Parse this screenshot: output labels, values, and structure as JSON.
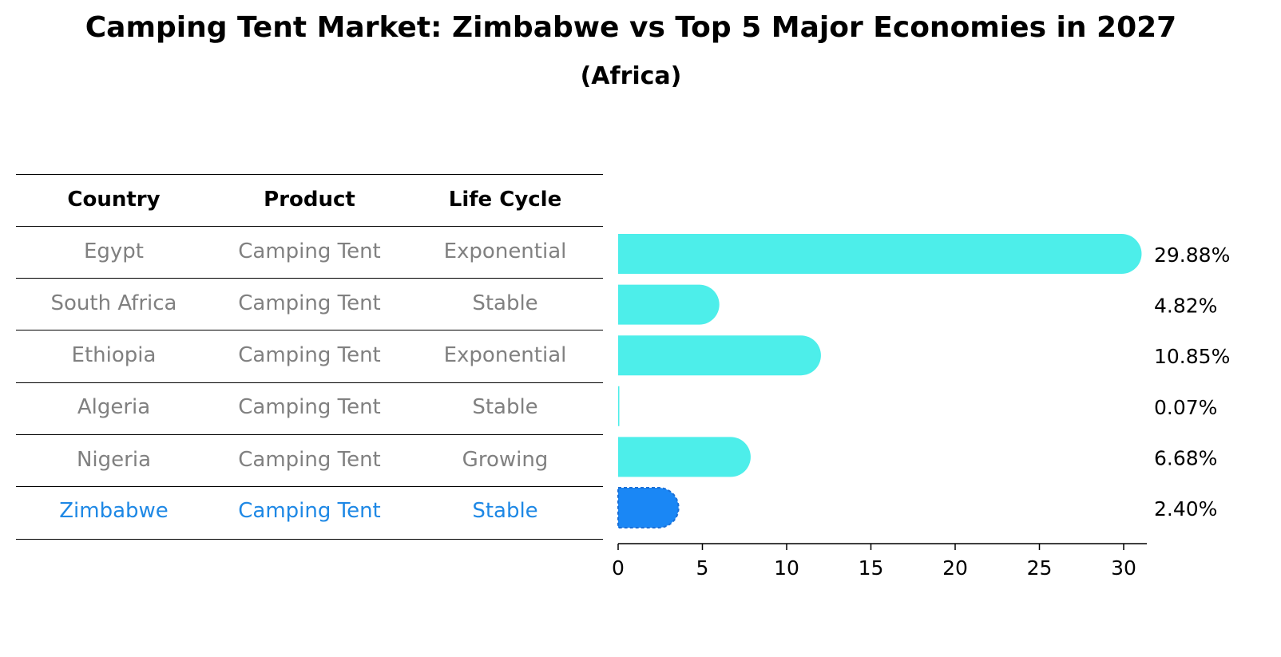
{
  "title": "Camping Tent Market: Zimbabwe vs Top 5 Major Economies in 2027",
  "subtitle": "(Africa)",
  "table": {
    "headers": [
      "Country",
      "Product",
      "Life Cycle"
    ],
    "rows": [
      {
        "country": "Egypt",
        "product": "Camping Tent",
        "life_cycle": "Exponential",
        "highlight": false
      },
      {
        "country": "South Africa",
        "product": "Camping Tent",
        "life_cycle": "Stable",
        "highlight": false
      },
      {
        "country": "Ethiopia",
        "product": "Camping Tent",
        "life_cycle": "Exponential",
        "highlight": false
      },
      {
        "country": "Algeria",
        "product": "Camping Tent",
        "life_cycle": "Stable",
        "highlight": false
      },
      {
        "country": "Nigeria",
        "product": "Camping Tent",
        "life_cycle": "Growing",
        "highlight": false
      },
      {
        "country": "Zimbabwe",
        "product": "Camping Tent",
        "life_cycle": "Stable",
        "highlight": true
      }
    ]
  },
  "chart_data": {
    "type": "bar",
    "orientation": "horizontal",
    "categories": [
      "Egypt",
      "South Africa",
      "Ethiopia",
      "Algeria",
      "Nigeria",
      "Zimbabwe"
    ],
    "values": [
      29.88,
      4.82,
      10.85,
      0.07,
      6.68,
      2.4
    ],
    "value_labels": [
      "29.88%",
      "4.82%",
      "10.85%",
      "0.07%",
      "6.68%",
      "2.40%"
    ],
    "xlim": [
      0,
      31.5
    ],
    "xticks": [
      0,
      5,
      10,
      15,
      20,
      25,
      30
    ],
    "grid": false,
    "colors": {
      "default": "#4deeea",
      "highlight": "#1a87f5",
      "highlight_edge": "#1a6fd6"
    }
  }
}
